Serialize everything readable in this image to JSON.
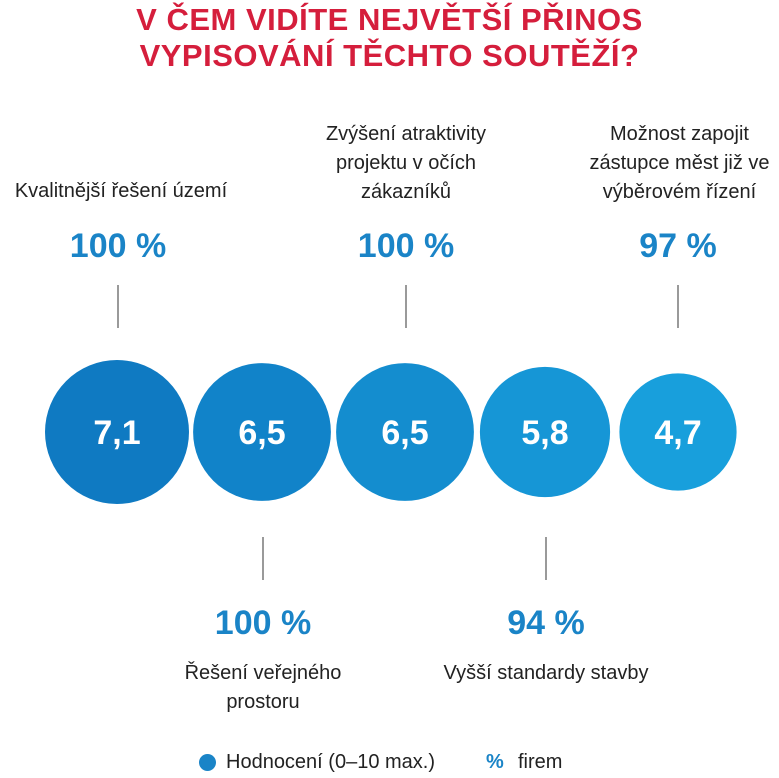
{
  "chart_data": {
    "type": "bubble",
    "title_lines": [
      "V ČEM VIDÍTE NEJVĚTŠÍ PŘINOS",
      "VYPISOVÁNÍ TĚCHTO SOUTĚŽÍ?"
    ],
    "items": [
      {
        "label_lines": [
          "Kvalitnější řešení území"
        ],
        "rating": "7,1",
        "rating_value": 7.1,
        "percent": "100 %",
        "percent_value": 100
      },
      {
        "label_lines": [
          "Řešení veřejného",
          "prostoru"
        ],
        "rating": "6,5",
        "rating_value": 6.5,
        "percent": "100 %",
        "percent_value": 100
      },
      {
        "label_lines": [
          "Zvýšení atraktivity",
          "projektu v očích",
          "zákazníků"
        ],
        "rating": "6,5",
        "rating_value": 6.5,
        "percent": "100 %",
        "percent_value": 100
      },
      {
        "label_lines": [
          "Vyšší standardy stavby"
        ],
        "rating": "5,8",
        "rating_value": 5.8,
        "percent": "94 %",
        "percent_value": 94
      },
      {
        "label_lines": [
          "Možnost zapojit",
          "zástupce měst již ve",
          "výběrovém řízení"
        ],
        "rating": "4,7",
        "rating_value": 4.7,
        "percent": "97 %",
        "percent_value": 97
      }
    ],
    "legend": {
      "rating_label": "Hodnocení (0–10 max.)",
      "percent_symbol": "%",
      "percent_label": "firem"
    },
    "colors": {
      "title": "#d51e3c",
      "bubble_dark": "#0f7ac2",
      "bubble_light": "#189fdc",
      "percent_text": "#1a84c7",
      "tick": "#9a9a9a"
    }
  }
}
